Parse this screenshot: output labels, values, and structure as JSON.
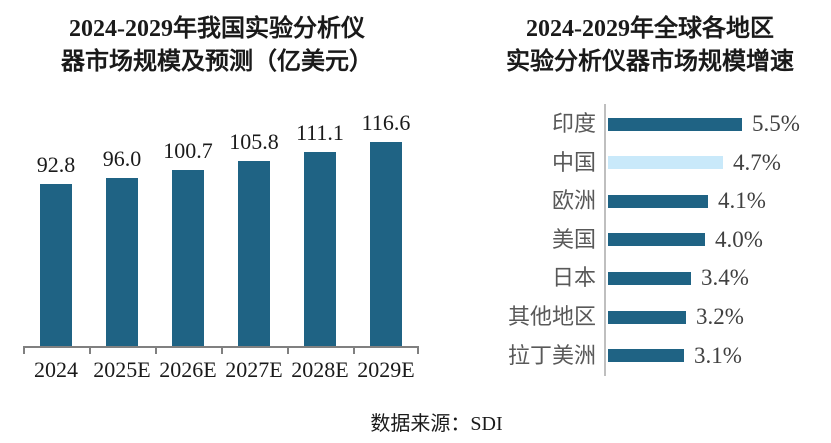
{
  "source_note": "数据来源：SDI",
  "colors": {
    "bar_primary": "#1F6384",
    "bar_highlight": "#C9E9FA",
    "axis_left": "#808080",
    "axis_right": "#BFBFBF",
    "category_gray": "#595959",
    "value_dark": "#404040",
    "text_black": "#1a1a1a"
  },
  "chart_data": [
    {
      "type": "bar",
      "title": "2024-2029年我国实验分析仪器市场规模及预测（亿美元）",
      "title_lines": [
        "2024-2029年我国实验分析仪",
        "器市场规模及预测（亿美元）"
      ],
      "unit": "亿美元",
      "categories": [
        "2024",
        "2025E",
        "2026E",
        "2027E",
        "2028E",
        "2029E"
      ],
      "values": [
        92.8,
        96.0,
        100.7,
        105.8,
        111.1,
        116.6
      ],
      "value_labels": [
        "92.8",
        "96.0",
        "100.7",
        "105.8",
        "111.1",
        "116.6"
      ],
      "ylim": [
        0,
        120
      ],
      "grid": false,
      "legend": false,
      "bar_color": "#1F6384"
    },
    {
      "type": "bar-horizontal",
      "title": "2024-2029年全球各地区实验分析仪器市场规模增速",
      "title_lines": [
        "2024-2029年全球各地区",
        "实验分析仪器市场规模增速"
      ],
      "unit": "%",
      "categories": [
        "印度",
        "中国",
        "欧洲",
        "美国",
        "日本",
        "其他地区",
        "拉丁美洲"
      ],
      "values": [
        5.5,
        4.7,
        4.1,
        4.0,
        3.4,
        3.2,
        3.1
      ],
      "value_labels": [
        "5.5%",
        "4.7%",
        "4.1%",
        "4.0%",
        "3.4%",
        "3.2%",
        "3.1%"
      ],
      "xlim": [
        0,
        5.5
      ],
      "grid": false,
      "legend": false,
      "highlight_category": "中国",
      "bar_color": "#1F6384",
      "highlight_color": "#C9E9FA"
    }
  ]
}
